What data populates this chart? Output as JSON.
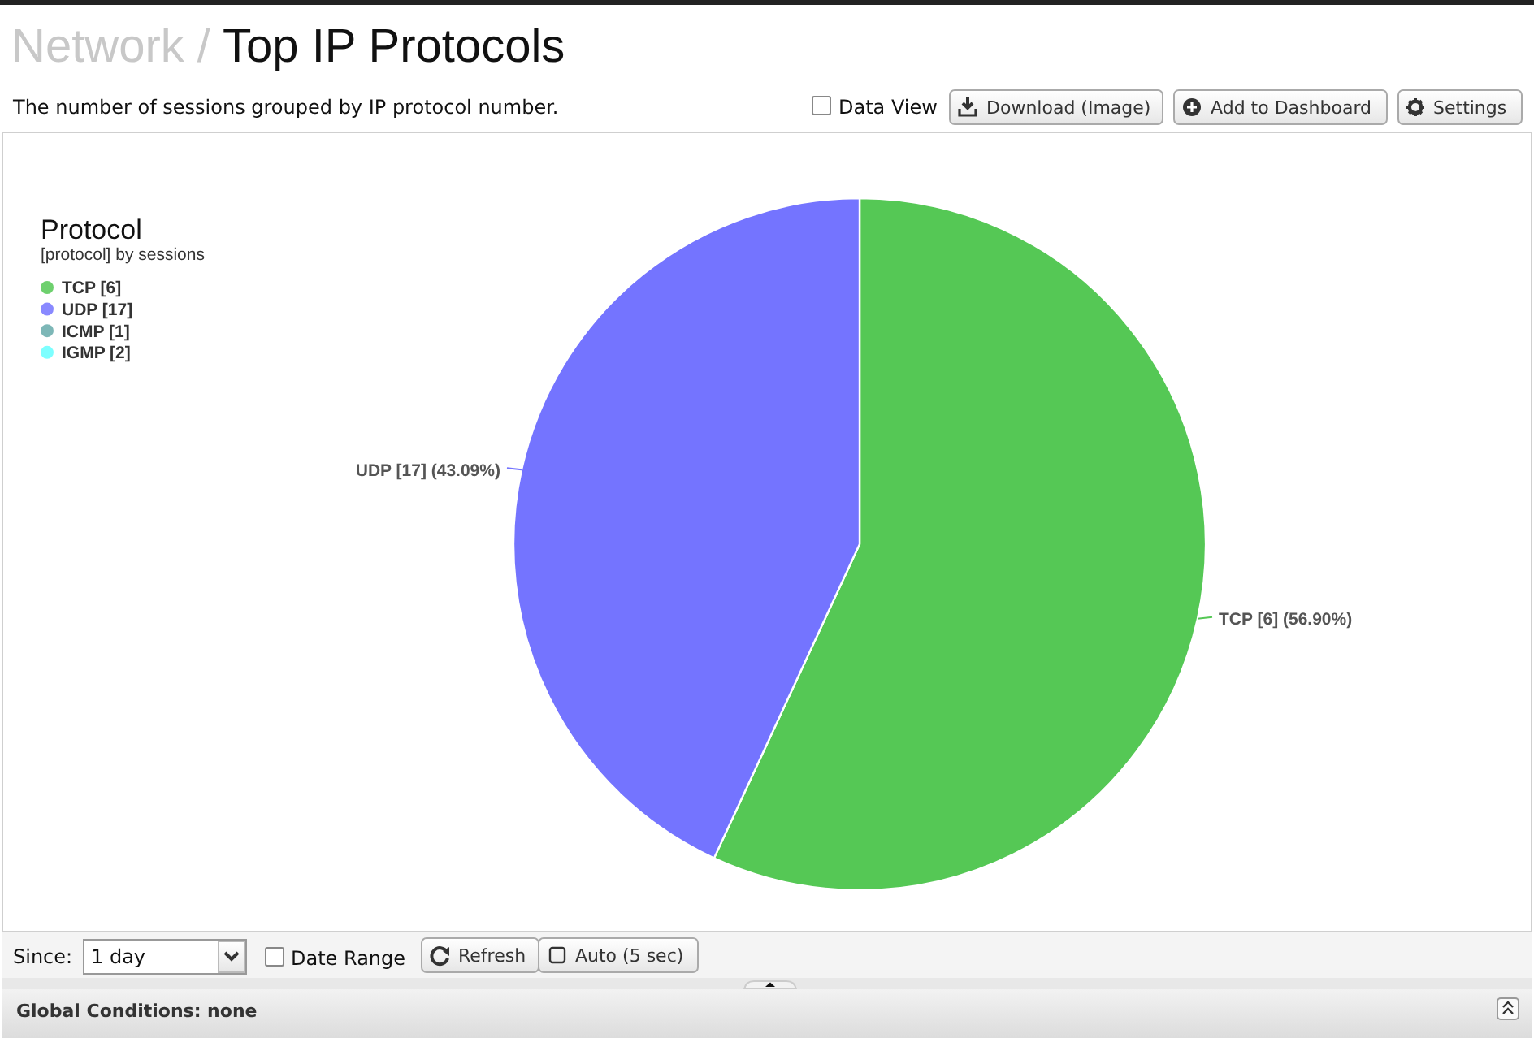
{
  "chart_data": {
    "type": "pie",
    "title": "Network / Top IP Protocols",
    "subtitle": "The number of sessions grouped by IP protocol number.",
    "legend_title": "Protocol",
    "categories": [
      "TCP [6]",
      "UDP [17]",
      "ICMP [1]",
      "IGMP [2]"
    ],
    "values": [
      56.9,
      43.09,
      null,
      null
    ],
    "colors": [
      "#55c855",
      "#7474ff",
      "#66aaaa",
      "#66ffff"
    ],
    "value_labels": [
      "TCP [6] (56.90%)",
      "UDP [17] (43.09%)",
      null,
      null
    ],
    "legend": "top left",
    "annotations": [
      "[protocol] by sessions",
      "Data View",
      "Download (Image)",
      "Add to Dashboard",
      "Settings",
      "Since:",
      "1 day",
      "Date Range",
      "Refresh",
      "Auto (5 sec)",
      "Global Conditions: none"
    ]
  }
}
